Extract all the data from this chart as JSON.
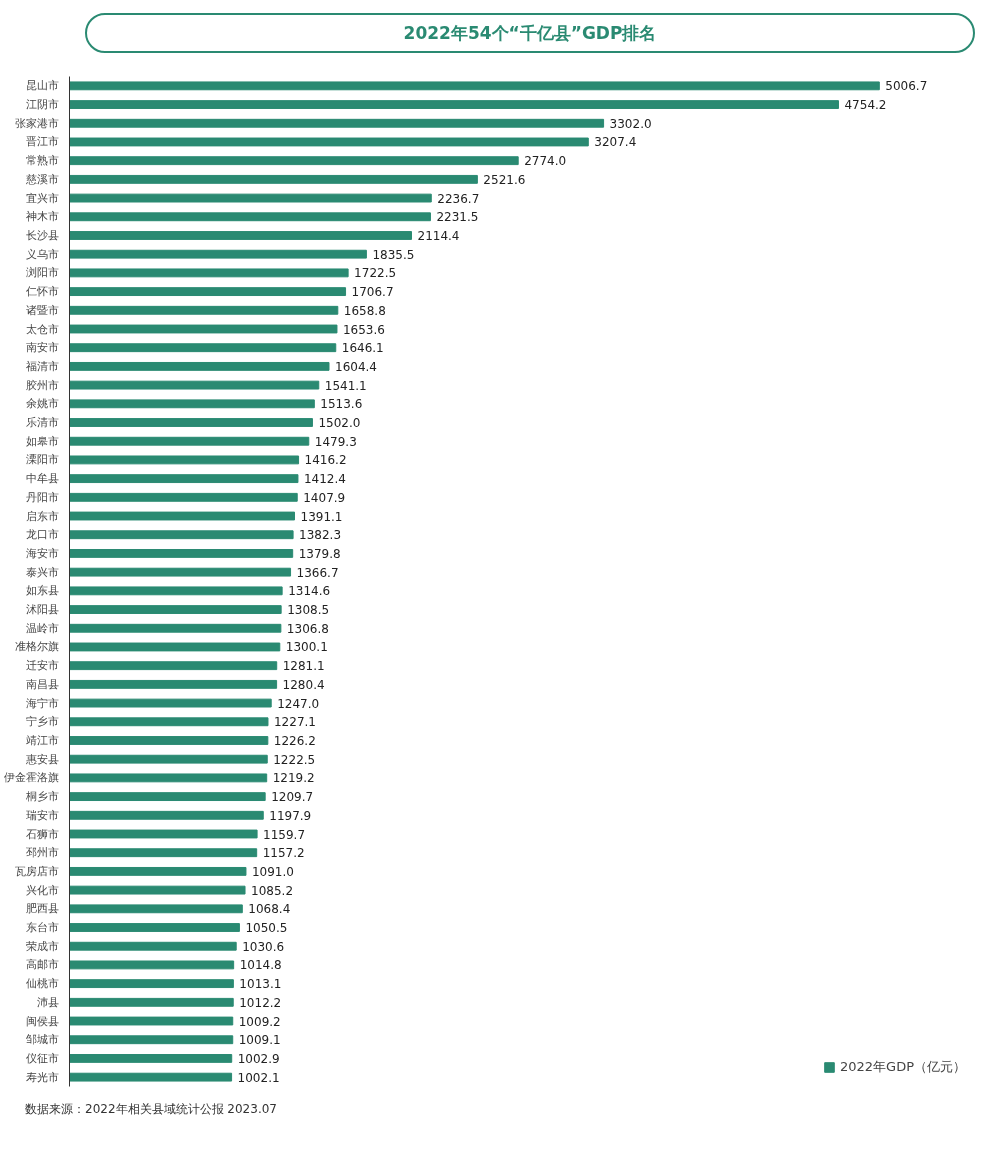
{
  "chart_data": {
    "type": "bar",
    "orientation": "horizontal",
    "title": "2022年54个“千亿县”GDP排名",
    "categories": [
      "昆山市",
      "江阴市",
      "张家港市",
      "晋江市",
      "常熟市",
      "慈溪市",
      "宜兴市",
      "神木市",
      "长沙县",
      "义乌市",
      "浏阳市",
      "仁怀市",
      "诸暨市",
      "太仓市",
      "南安市",
      "福清市",
      "胶州市",
      "余姚市",
      "乐清市",
      "如皋市",
      "溧阳市",
      "中牟县",
      "丹阳市",
      "启东市",
      "龙口市",
      "海安市",
      "泰兴市",
      "如东县",
      "沭阳县",
      "温岭市",
      "准格尔旗",
      "迁安市",
      "南昌县",
      "海宁市",
      "宁乡市",
      "靖江市",
      "惠安县",
      "伊金霍洛旗",
      "桐乡市",
      "瑞安市",
      "石狮市",
      "邳州市",
      "瓦房店市",
      "兴化市",
      "肥西县",
      "东台市",
      "荣成市",
      "高邮市",
      "仙桃市",
      "沛县",
      "闽侯县",
      "邹城市",
      "仪征市",
      "寿光市"
    ],
    "series": [
      {
        "name": "2022年GDP（亿元）",
        "color": "#2a8a72",
        "values": [
          5006.7,
          4754.2,
          3302.0,
          3207.4,
          2774.0,
          2521.6,
          2236.7,
          2231.5,
          2114.4,
          1835.5,
          1722.5,
          1706.7,
          1658.8,
          1653.6,
          1646.1,
          1604.4,
          1541.1,
          1513.6,
          1502.0,
          1479.3,
          1416.2,
          1412.4,
          1407.9,
          1391.1,
          1382.3,
          1379.8,
          1366.7,
          1314.6,
          1308.5,
          1306.8,
          1300.1,
          1281.1,
          1280.4,
          1247.0,
          1227.1,
          1226.2,
          1222.5,
          1219.2,
          1209.7,
          1197.9,
          1159.7,
          1157.2,
          1091.0,
          1085.2,
          1068.4,
          1050.5,
          1030.6,
          1014.8,
          1013.1,
          1012.2,
          1009.2,
          1009.1,
          1002.9,
          1002.1
        ],
        "value_labels": [
          "5006.7",
          "4754.2",
          "3302.0",
          "3207.4",
          "2774.0",
          "2521.6",
          "2236.7",
          "2231.5",
          "2114.4",
          "1835.5",
          "1722.5",
          "1706.7",
          "1658.8",
          "1653.6",
          "1646.1",
          "1604.4",
          "1541.1",
          "1513.6",
          "1502.0",
          "1479.3",
          "1416.2",
          "1412.4",
          "1407.9",
          "1391.1",
          "1382.3",
          "1379.8",
          "1366.7",
          "1314.6",
          "1308.5",
          "1306.8",
          "1300.1",
          "1281.1",
          "1280.4",
          "1247.0",
          "1227.1",
          "1226.2",
          "1222.5",
          "1219.2",
          "1209.7",
          "1197.9",
          "1159.7",
          "1157.2",
          "1091.0",
          "1085.2",
          "1068.4",
          "1050.5",
          "1030.6",
          "1014.8",
          "1013.1",
          "1012.2",
          "1009.2",
          "1009.1",
          "1002.9",
          "1002.1"
        ]
      }
    ],
    "legend": "bottom right",
    "tick_labels": "y",
    "grid": false,
    "annotations": [
      "数据来源：2022年相关县域统计公报 2023.07"
    ]
  }
}
